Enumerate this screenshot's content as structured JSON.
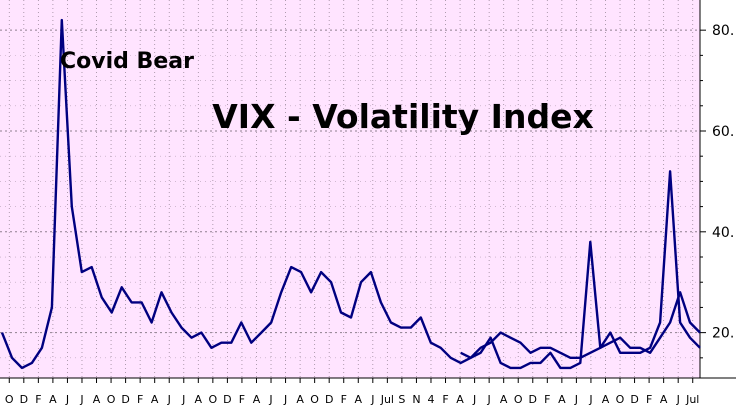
{
  "chart_data": {
    "type": "line",
    "title": "VIX - Volatility Index",
    "annotations": [
      {
        "text": "Covid Bear",
        "x": "Mar 2020",
        "y": 82
      }
    ],
    "y_ticks": [
      20,
      40,
      60,
      80
    ],
    "y_tick_labels": [
      "20.",
      "40.",
      "60.",
      "80."
    ],
    "ylim": [
      11,
      84
    ],
    "y_axis_side": "right",
    "grid": true,
    "x_tick_labels": [
      "O",
      "D",
      "F",
      "A",
      "J",
      "J",
      "A",
      "O",
      "D",
      "F",
      "A",
      "J",
      "J",
      "A",
      "O",
      "D",
      "F",
      "A",
      "J",
      "J",
      "A",
      "O",
      "D",
      "F",
      "A",
      "J",
      "Jul",
      "S",
      "N",
      "4",
      "F",
      "A",
      "J",
      "J",
      "A",
      "O",
      "D",
      "F",
      "A",
      "J",
      "J",
      "A",
      "O",
      "D",
      "F",
      "A",
      "J",
      "Jul"
    ],
    "series": [
      {
        "color": "#000080",
        "x": [
          "2019-09",
          "2019-10",
          "2019-11",
          "2019-12",
          "2020-01",
          "2020-02",
          "2020-03",
          "2020-04",
          "2020-05",
          "2020-06",
          "2020-07",
          "2020-08",
          "2020-09",
          "2020-10",
          "2020-11",
          "2020-12",
          "2021-01",
          "2021-02",
          "2021-03",
          "2021-04",
          "2021-05",
          "2021-06",
          "2021-07",
          "2021-08",
          "2021-09",
          "2021-10",
          "2021-11",
          "2021-12",
          "2022-01",
          "2022-02",
          "2022-03",
          "2022-04",
          "2022-05",
          "2022-06",
          "2022-07",
          "2022-08",
          "2022-09",
          "2022-10",
          "2022-11",
          "2022-12",
          "2023-01",
          "2023-02",
          "2023-03",
          "2023-04",
          "2023-05",
          "2023-06",
          "2023-07",
          "2023-08",
          "2023-09",
          "2023-10",
          "2023-11",
          "2023-12",
          "2024-01",
          "2024-02",
          "2024-03",
          "2024-04",
          "2024-05",
          "2024-06",
          "2024-07",
          "2024-08",
          "2024-09",
          "2024-10",
          "2024-11",
          "2024-12",
          "2025-01",
          "2025-02",
          "2025-03",
          "2025-04",
          "2025-05",
          "2025-06",
          "2025-07"
        ],
        "values": [
          20,
          15,
          13,
          14,
          17,
          25,
          82,
          45,
          32,
          33,
          27,
          24,
          29,
          26,
          26,
          22,
          28,
          24,
          21,
          19,
          20,
          17,
          18,
          18,
          22,
          18,
          20,
          22,
          28,
          33,
          32,
          28,
          32,
          30,
          24,
          23,
          30,
          32,
          26,
          22,
          21,
          21,
          23,
          18,
          17,
          15,
          14,
          15,
          16,
          19,
          14,
          13,
          13,
          14,
          14,
          16,
          13,
          13,
          14,
          38,
          17,
          20,
          16,
          16,
          16,
          17,
          22,
          52,
          22,
          19,
          17
        ]
      },
      {
        "color": "#000080",
        "x": [
          "2023-07",
          "2023-08",
          "2023-09",
          "2023-10",
          "2023-11",
          "2023-12",
          "2024-01",
          "2024-02",
          "2024-03",
          "2024-04",
          "2024-05",
          "2024-06",
          "2024-07",
          "2024-08",
          "2024-09",
          "2024-10",
          "2024-11",
          "2024-12",
          "2025-01",
          "2025-02",
          "2025-03",
          "2025-04",
          "2025-05",
          "2025-06",
          "2025-07"
        ],
        "values": [
          16,
          15,
          17,
          18,
          20,
          19,
          18,
          16,
          17,
          17,
          16,
          15,
          15,
          16,
          17,
          18,
          19,
          17,
          17,
          16,
          19,
          22,
          28,
          22,
          20
        ]
      }
    ]
  }
}
